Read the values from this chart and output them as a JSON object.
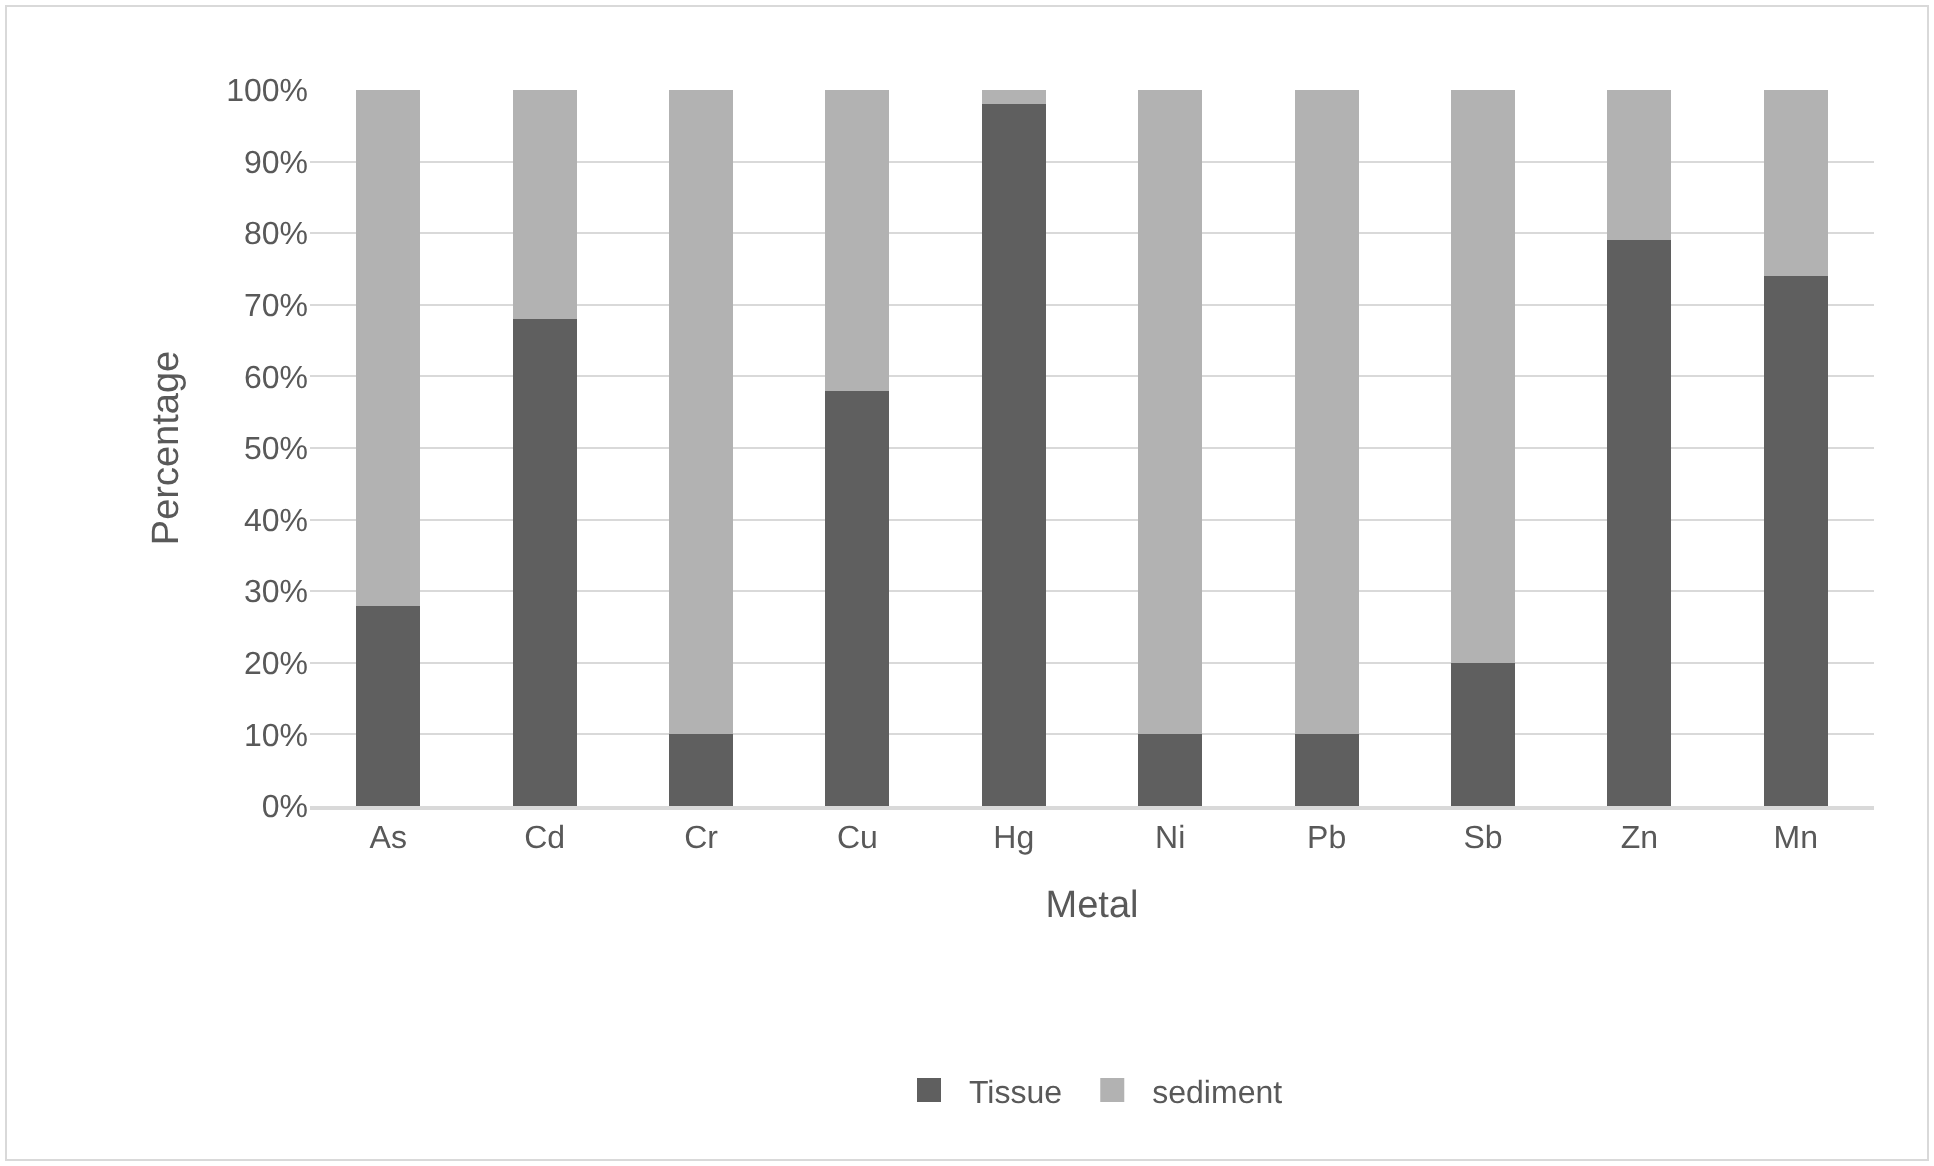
{
  "chart_data": {
    "type": "bar",
    "stacked": true,
    "xlabel": "Metal",
    "ylabel": "Percentage",
    "categories": [
      "As",
      "Cd",
      "Cr",
      "Cu",
      "Hg",
      "Ni",
      "Pb",
      "Sb",
      "Zn",
      "Mn"
    ],
    "series": [
      {
        "name": "Tissue",
        "color": "#5f5f5f",
        "values": [
          28,
          68,
          10,
          58,
          98,
          10,
          10,
          20,
          79,
          74
        ]
      },
      {
        "name": "sediment",
        "color": "#b2b2b2",
        "values": [
          72,
          32,
          90,
          42,
          2,
          90,
          90,
          80,
          21,
          26
        ]
      }
    ],
    "ylim": [
      0,
      100
    ],
    "yticks": [
      {
        "value": 0,
        "label": "0%"
      },
      {
        "value": 10,
        "label": "10%"
      },
      {
        "value": 20,
        "label": "20%"
      },
      {
        "value": 30,
        "label": "30%"
      },
      {
        "value": 40,
        "label": "40%"
      },
      {
        "value": 50,
        "label": "50%"
      },
      {
        "value": 60,
        "label": "60%"
      },
      {
        "value": 70,
        "label": "70%"
      },
      {
        "value": 80,
        "label": "80%"
      },
      {
        "value": 90,
        "label": "90%"
      },
      {
        "value": 100,
        "label": "100%"
      }
    ],
    "grid": "y",
    "legend": "bottom"
  }
}
